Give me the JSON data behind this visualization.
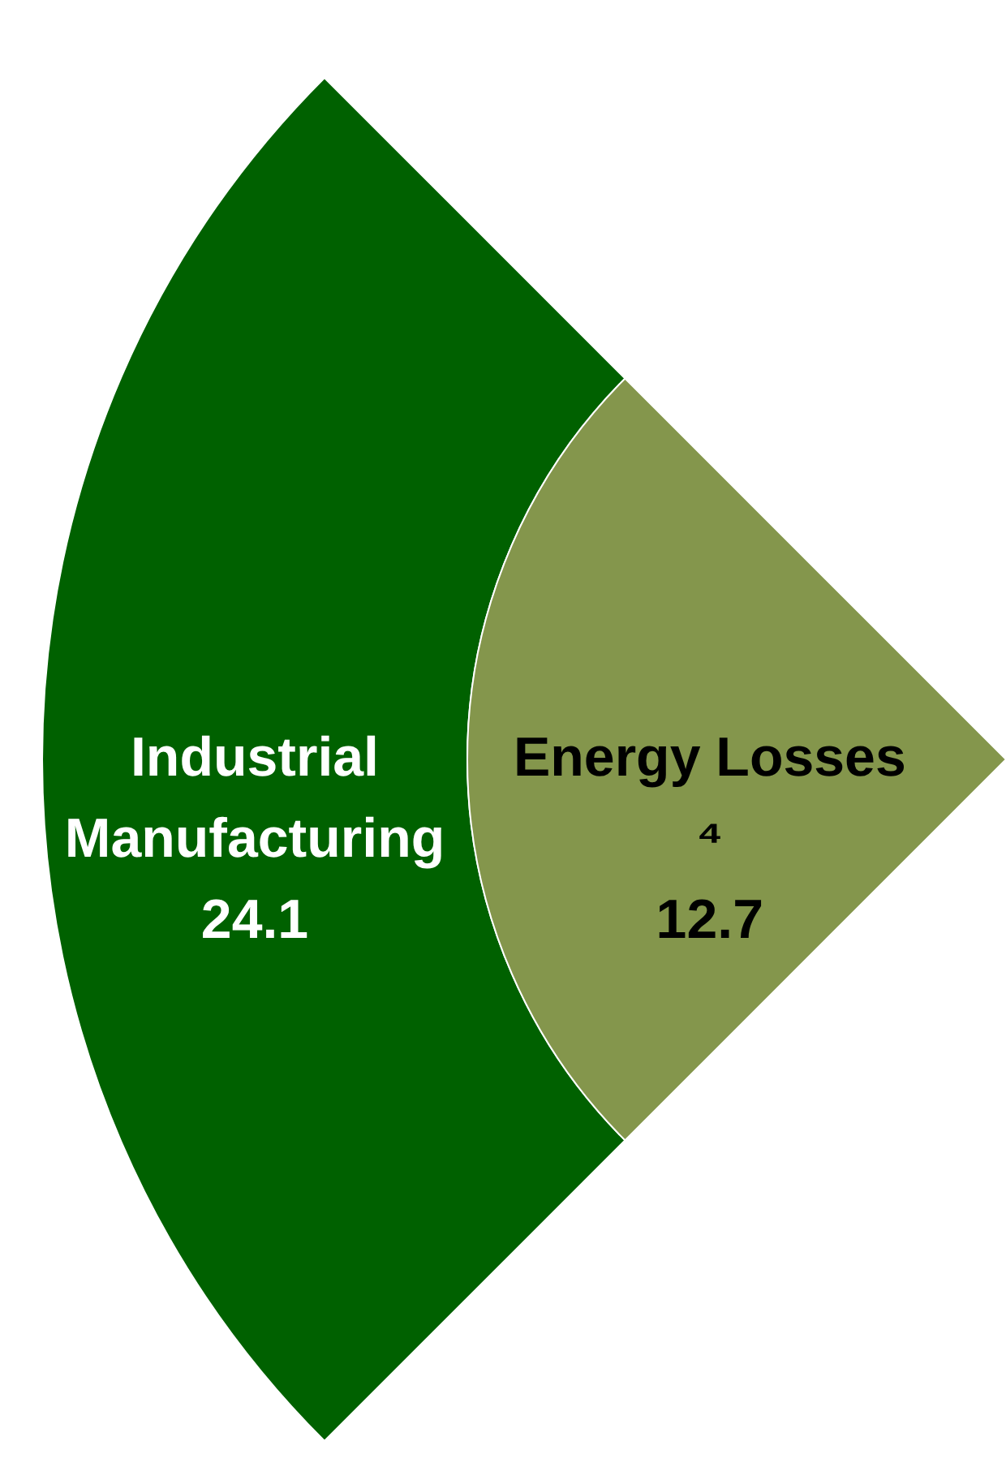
{
  "chart_data": {
    "type": "other",
    "categories": [
      "Industrial Manufacturing",
      "Energy Losses ⁴"
    ],
    "values": [
      24.1,
      12.7
    ],
    "colors": [
      "#006100",
      "#84964c"
    ],
    "data_labels": true
  }
}
